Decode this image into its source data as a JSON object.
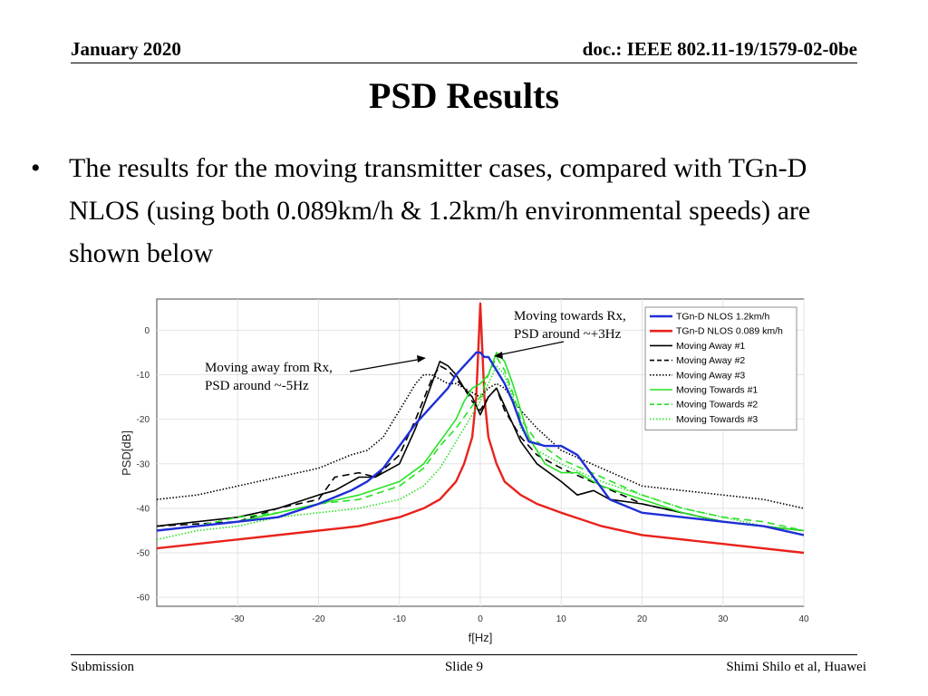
{
  "header": {
    "date": "January 2020",
    "doc": "doc.: IEEE 802.11-19/1579-02-0be"
  },
  "slide": {
    "title": "PSD Results",
    "bullet_marker": "•",
    "bullet_text": "The results for the moving transmitter cases, compared with TGn-D NLOS (using both 0.089km/h & 1.2km/h environmental speeds) are shown below"
  },
  "footer": {
    "left": "Submission",
    "center": "Slide 9",
    "right": "Shimi Shilo et al, Huawei"
  },
  "annotations": {
    "away_line1": "Moving away from Rx,",
    "away_line2": "PSD around ~-5Hz",
    "towards_line1": "Moving towards Rx,",
    "towards_line2": "PSD around ~+3Hz"
  },
  "chart_data": {
    "type": "line",
    "xlabel": "f[Hz]",
    "ylabel": "PSD[dB]",
    "xlim": [
      -40,
      40
    ],
    "ylim": [
      -62,
      7
    ],
    "xticks": [
      -30,
      -20,
      -10,
      0,
      10,
      20,
      30,
      40
    ],
    "yticks": [
      0,
      -10,
      -20,
      -30,
      -40,
      -50,
      -60
    ],
    "grid": true,
    "legend_position": "top-right",
    "series": [
      {
        "name": "TGn-D NLOS 1.2km/h",
        "color": "#1f2fd6",
        "dash": "solid",
        "x": [
          -40,
          -35,
          -30,
          -25,
          -20,
          -16,
          -14,
          -12,
          -10,
          -8,
          -6,
          -5,
          -4,
          -3,
          -2,
          -1,
          -0.5,
          0,
          0.5,
          1,
          2,
          3,
          4,
          5,
          6,
          8,
          10,
          12,
          14,
          16,
          20,
          25,
          30,
          35,
          40
        ],
        "y": [
          -45,
          -44,
          -43,
          -42,
          -39,
          -36,
          -34,
          -31,
          -26,
          -21,
          -17,
          -15,
          -13,
          -10,
          -8,
          -6,
          -5,
          -5,
          -6,
          -6,
          -9,
          -12,
          -16,
          -21,
          -25,
          -26,
          -26,
          -28,
          -33,
          -38,
          -41,
          -42,
          -43,
          -44,
          -46
        ]
      },
      {
        "name": "TGn-D NLOS 0.089 km/h",
        "color": "#e8221b",
        "dash": "solid",
        "x": [
          -40,
          -30,
          -20,
          -15,
          -10,
          -7,
          -5,
          -3,
          -2,
          -1,
          -0.5,
          0,
          0.5,
          1,
          2,
          3,
          5,
          7,
          10,
          15,
          20,
          30,
          40
        ],
        "y": [
          -49,
          -47,
          -45,
          -44,
          -42,
          -40,
          -38,
          -34,
          -30,
          -24,
          -15,
          6,
          -15,
          -24,
          -30,
          -34,
          -37,
          -39,
          -41,
          -44,
          -46,
          -48,
          -50
        ]
      },
      {
        "name": "Moving Away #1",
        "color": "#000000",
        "dash": "solid",
        "x": [
          -40,
          -30,
          -25,
          -20,
          -18,
          -15,
          -13,
          -10,
          -8,
          -6,
          -5,
          -4,
          -3,
          -2,
          -1,
          0,
          1,
          2,
          3,
          5,
          7,
          10,
          12,
          14,
          16,
          20,
          25,
          30,
          40
        ],
        "y": [
          -44,
          -42,
          -40,
          -37,
          -36,
          -33,
          -33,
          -30,
          -22,
          -12,
          -7,
          -8,
          -10,
          -13,
          -15,
          -19,
          -15,
          -13,
          -17,
          -25,
          -30,
          -34,
          -37,
          -36,
          -38,
          -39,
          -41,
          -43,
          -45
        ]
      },
      {
        "name": "Moving Away #2",
        "color": "#000000",
        "dash": "8 5",
        "x": [
          -40,
          -30,
          -25,
          -20,
          -18,
          -15,
          -13,
          -10,
          -8,
          -6,
          -5,
          -4,
          -3,
          -2,
          -1,
          0,
          1,
          2,
          3,
          5,
          7,
          10,
          15,
          20,
          25,
          30,
          40
        ],
        "y": [
          -44,
          -43,
          -40,
          -38,
          -33,
          -32,
          -33,
          -28,
          -20,
          -11,
          -8,
          -9,
          -11,
          -13,
          -16,
          -18,
          -15,
          -13,
          -18,
          -24,
          -28,
          -31,
          -35,
          -39,
          -41,
          -43,
          -45
        ]
      },
      {
        "name": "Moving Away #3",
        "color": "#000000",
        "dash": "1.5 2",
        "x": [
          -40,
          -35,
          -30,
          -25,
          -20,
          -16,
          -14,
          -12,
          -10,
          -8,
          -7,
          -6,
          -5,
          -4,
          -3,
          -2,
          -1,
          0,
          1,
          2,
          3,
          5,
          7,
          10,
          15,
          20,
          25,
          30,
          35,
          40
        ],
        "y": [
          -38,
          -37,
          -35,
          -33,
          -31,
          -28,
          -27,
          -24,
          -18,
          -12,
          -10,
          -10,
          -11,
          -12,
          -12,
          -13,
          -14,
          -15,
          -13,
          -12,
          -13,
          -18,
          -22,
          -27,
          -31,
          -35,
          -36,
          -37,
          -38,
          -40
        ]
      },
      {
        "name": "Moving Towards #1",
        "color": "#27e224",
        "dash": "solid",
        "x": [
          -40,
          -35,
          -30,
          -25,
          -20,
          -15,
          -10,
          -7,
          -5,
          -3,
          -2,
          -1,
          0,
          1,
          2,
          3,
          4,
          5,
          6,
          8,
          10,
          12,
          15,
          20,
          25,
          30,
          35,
          40
        ],
        "y": [
          -45,
          -44,
          -43,
          -41,
          -39,
          -37,
          -34,
          -30,
          -25,
          -20,
          -16,
          -13,
          -12,
          -10,
          -5,
          -7,
          -12,
          -18,
          -24,
          -30,
          -32,
          -32,
          -35,
          -38,
          -41,
          -43,
          -44,
          -45
        ]
      },
      {
        "name": "Moving Towards #2",
        "color": "#27e224",
        "dash": "8 5",
        "x": [
          -40,
          -35,
          -30,
          -25,
          -20,
          -15,
          -10,
          -7,
          -5,
          -3,
          -1,
          0,
          1,
          2,
          3,
          4,
          5,
          7,
          10,
          15,
          20,
          25,
          30,
          35,
          40
        ],
        "y": [
          -45,
          -44,
          -42,
          -41,
          -39,
          -38,
          -35,
          -31,
          -26,
          -22,
          -17,
          -15,
          -10,
          -6,
          -9,
          -14,
          -20,
          -25,
          -29,
          -33,
          -37,
          -40,
          -42,
          -43,
          -45
        ]
      },
      {
        "name": "Moving Towards #3",
        "color": "#27e224",
        "dash": "1.5 2",
        "x": [
          -40,
          -35,
          -30,
          -25,
          -20,
          -15,
          -10,
          -7,
          -5,
          -3,
          -1,
          0,
          1,
          2,
          3,
          4,
          5,
          7,
          10,
          15,
          20,
          25,
          30,
          35,
          40
        ],
        "y": [
          -47,
          -45,
          -44,
          -42,
          -41,
          -40,
          -38,
          -35,
          -31,
          -25,
          -19,
          -16,
          -12,
          -8,
          -10,
          -15,
          -22,
          -27,
          -30,
          -34,
          -37,
          -40,
          -42,
          -44,
          -45
        ]
      }
    ]
  }
}
